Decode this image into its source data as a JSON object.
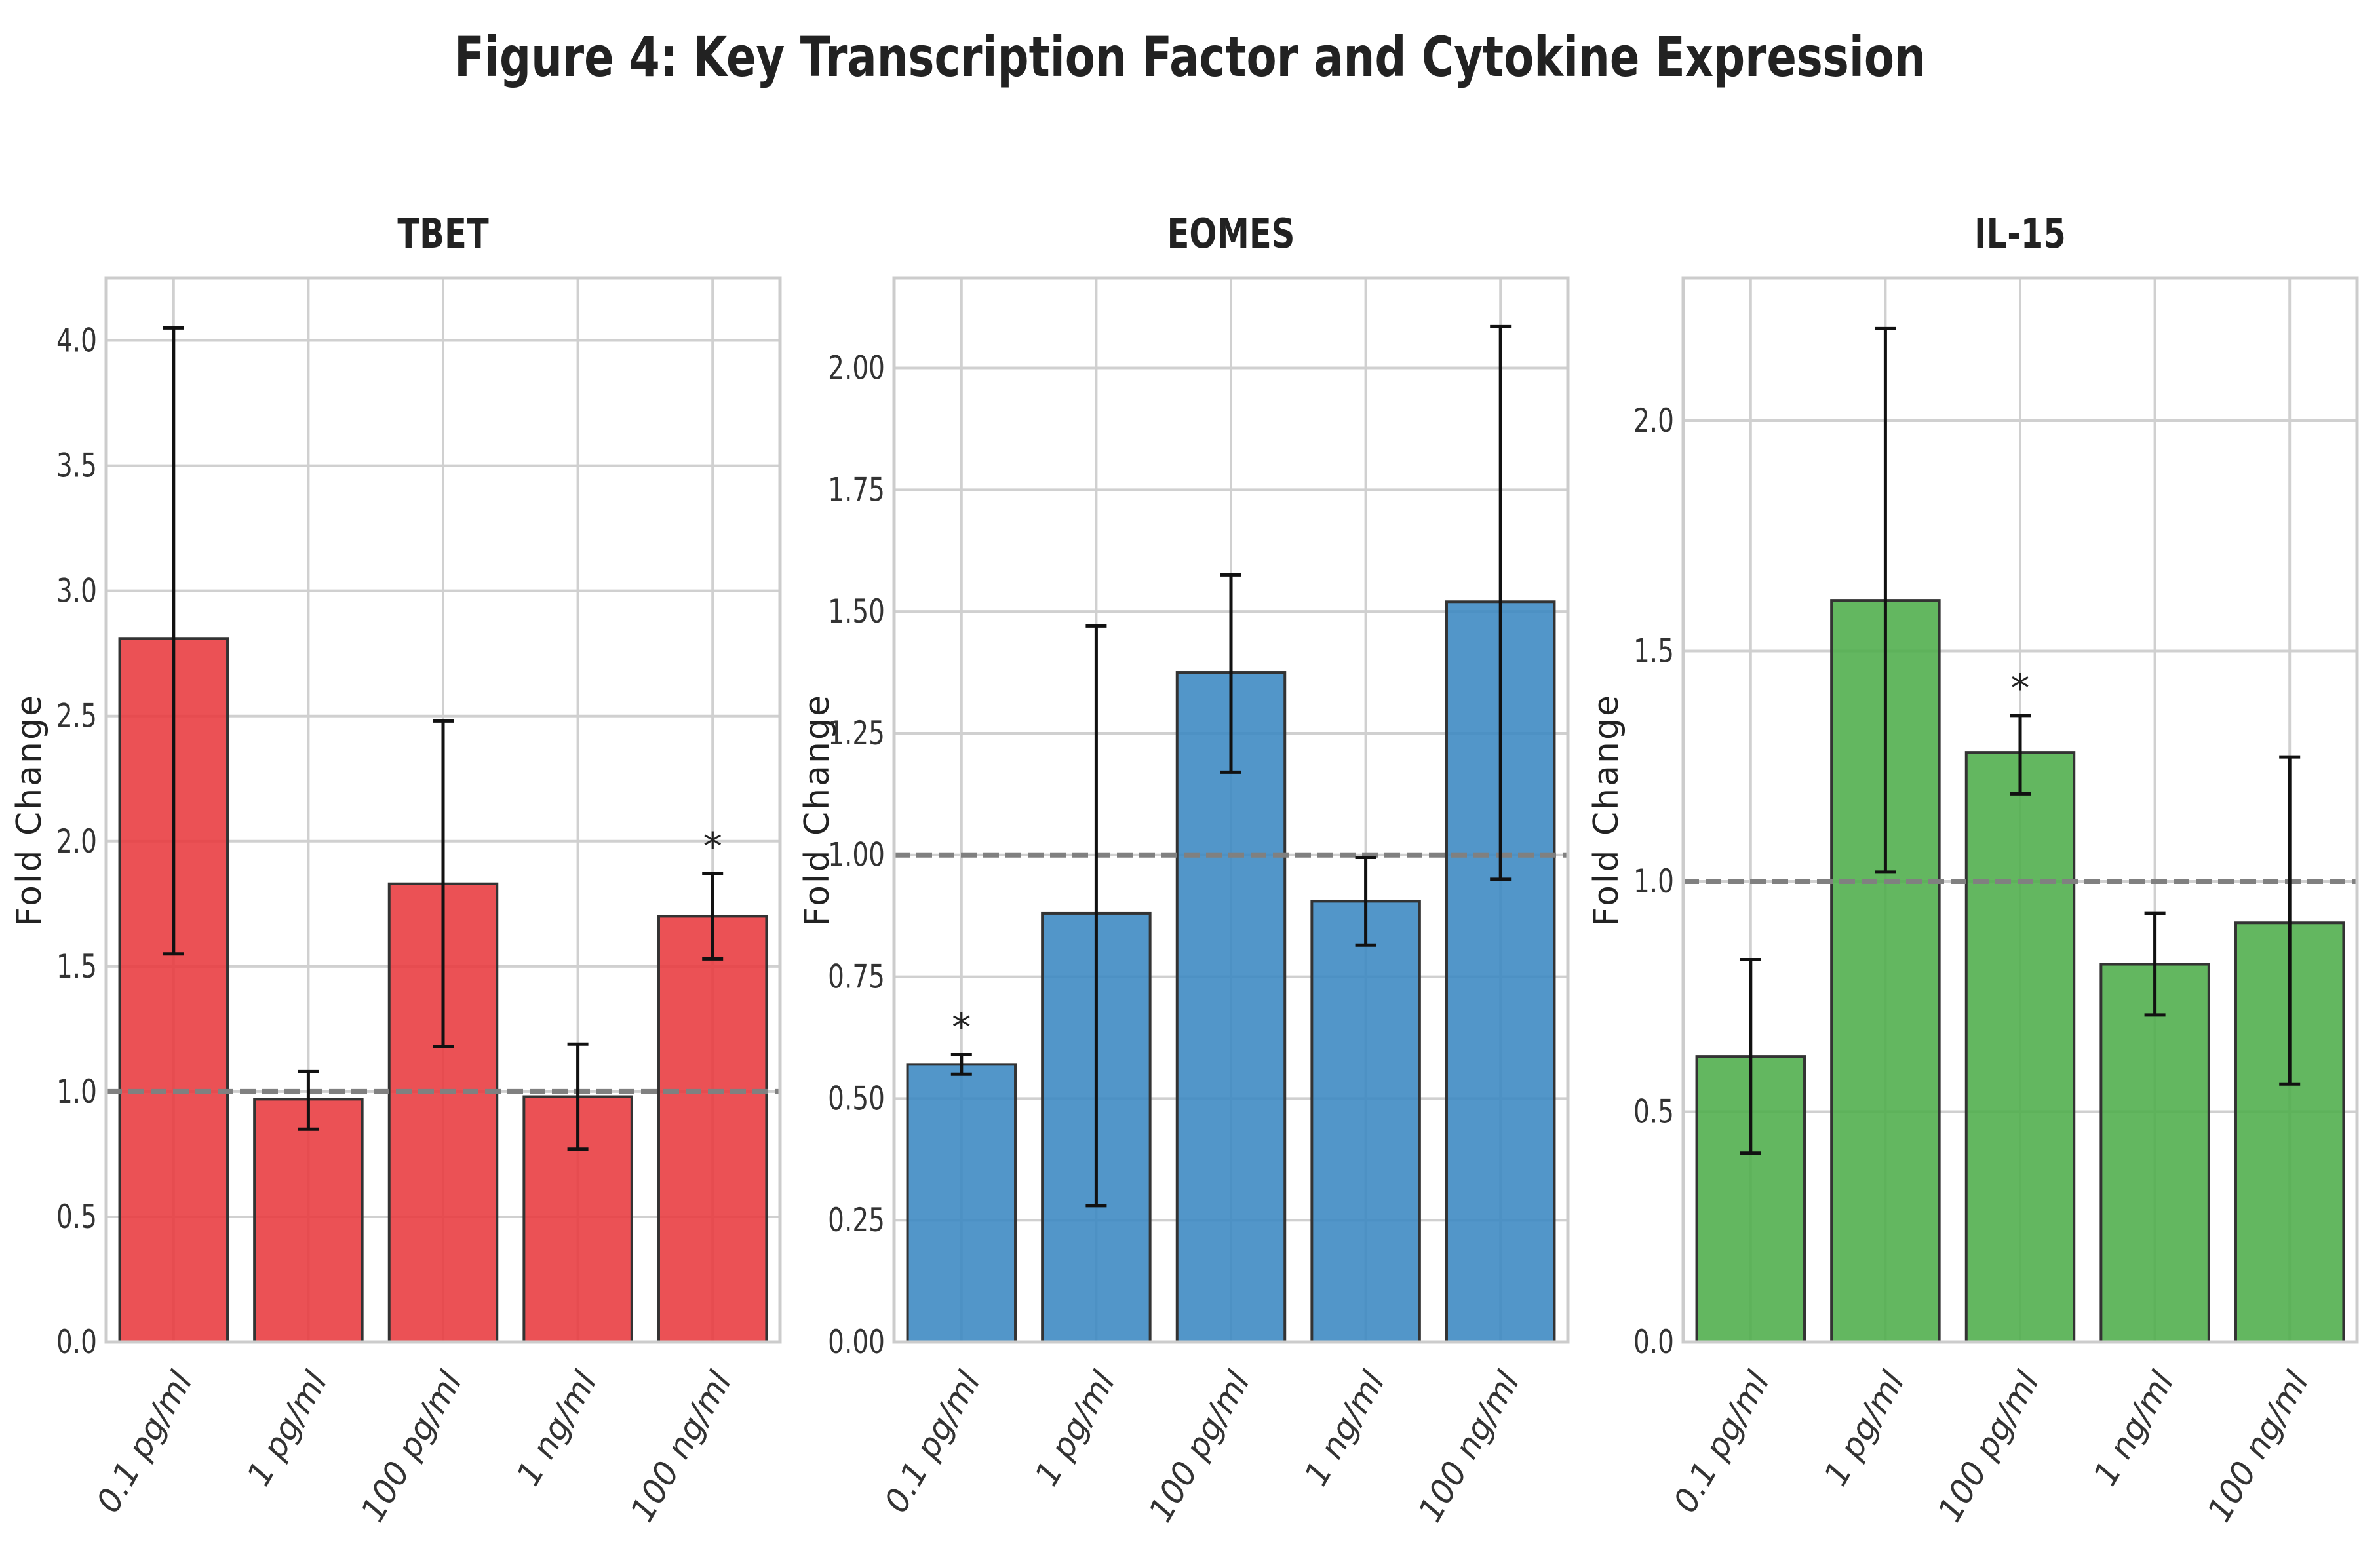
{
  "figure_title": "Figure 4: Key Transcription Factor and Cytokine Expression",
  "chart_data": [
    {
      "type": "bar",
      "title": "TBET",
      "ylabel": "Fold Change",
      "xlabel": "",
      "categories": [
        "0.1 pg/ml",
        "1 pg/ml",
        "100 pg/ml",
        "1 ng/ml",
        "100 ng/ml"
      ],
      "values": [
        2.81,
        0.97,
        1.83,
        0.98,
        1.7
      ],
      "error_low": [
        1.55,
        0.85,
        1.18,
        0.77,
        1.53
      ],
      "error_high": [
        4.05,
        1.08,
        2.48,
        1.19,
        1.87
      ],
      "significance": [
        "",
        "",
        "",
        "",
        "*"
      ],
      "yticks": [
        "0.0",
        "0.5",
        "1.0",
        "1.5",
        "2.0",
        "2.5",
        "3.0",
        "3.5",
        "4.0"
      ],
      "ylim": [
        0,
        4.25
      ],
      "reference_line": 1.0,
      "color": "#e8393d",
      "grid": true
    },
    {
      "type": "bar",
      "title": "EOMES",
      "ylabel": "Fold Change",
      "xlabel": "",
      "categories": [
        "0.1 pg/ml",
        "1 pg/ml",
        "100 pg/ml",
        "1 ng/ml",
        "100 ng/ml"
      ],
      "values": [
        0.57,
        0.88,
        1.375,
        0.905,
        1.52
      ],
      "error_low": [
        0.55,
        0.28,
        1.17,
        0.815,
        0.95
      ],
      "error_high": [
        0.59,
        1.47,
        1.575,
        0.995,
        2.085
      ],
      "significance": [
        "*",
        "",
        "",
        "",
        ""
      ],
      "yticks": [
        "0.00",
        "0.25",
        "0.50",
        "0.75",
        "1.00",
        "1.25",
        "1.50",
        "1.75",
        "2.00"
      ],
      "ylim": [
        0,
        2.185
      ],
      "reference_line": 1.0,
      "color": "#3a87c2",
      "grid": true
    },
    {
      "type": "bar",
      "title": "IL-15",
      "ylabel": "Fold Change",
      "xlabel": "",
      "categories": [
        "0.1 pg/ml",
        "1 pg/ml",
        "100 pg/ml",
        "1 ng/ml",
        "100 ng/ml"
      ],
      "values": [
        0.62,
        1.61,
        1.28,
        0.82,
        0.91
      ],
      "error_low": [
        0.41,
        1.02,
        1.19,
        0.71,
        0.56
      ],
      "error_high": [
        0.83,
        2.2,
        1.36,
        0.93,
        1.27
      ],
      "significance": [
        "",
        "",
        "*",
        "",
        ""
      ],
      "yticks": [
        "0.0",
        "0.5",
        "1.0",
        "1.5",
        "2.0"
      ],
      "ylim": [
        0,
        2.31
      ],
      "reference_line": 1.0,
      "color": "#4dad4a",
      "grid": true
    }
  ]
}
